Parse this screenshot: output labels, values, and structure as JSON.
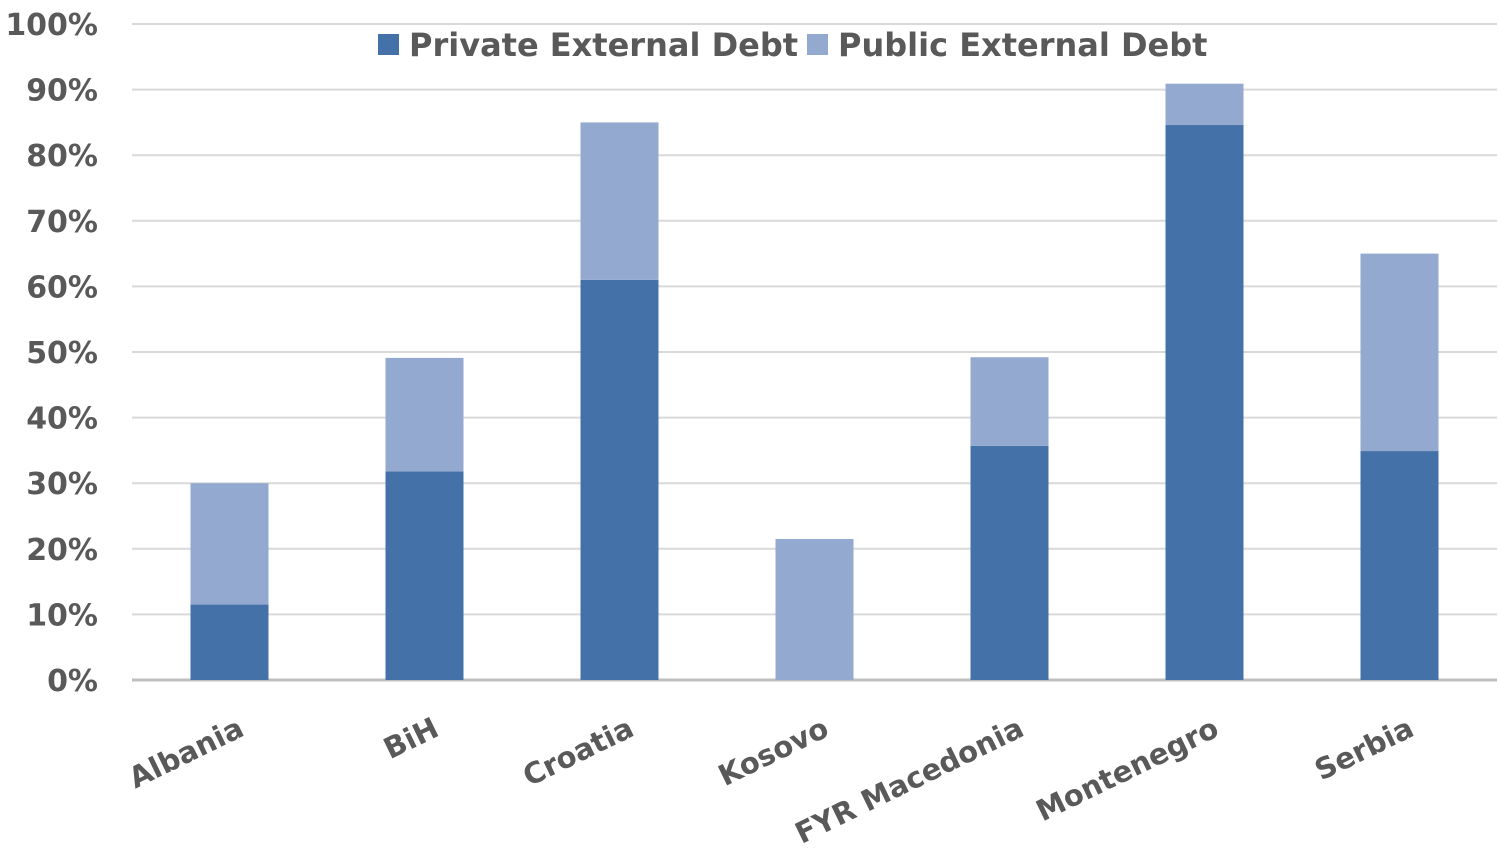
{
  "chart_data": {
    "type": "bar",
    "stacked": true,
    "title": "",
    "xlabel": "",
    "ylabel": "",
    "categories": [
      "Albania",
      "BiH",
      "Croatia",
      "Kosovo",
      "FYR Macedonia",
      "Montenegro",
      "Serbia"
    ],
    "series": [
      {
        "name": "Private External Debt",
        "color": "#4472a8",
        "values": [
          11.5,
          31.8,
          61.0,
          0,
          35.7,
          84.6,
          34.9
        ]
      },
      {
        "name": "Public External Debt",
        "color": "#94a9d0",
        "values": [
          18.5,
          17.3,
          24.0,
          21.5,
          13.5,
          6.3,
          30.1
        ]
      }
    ],
    "ylim": [
      0,
      100
    ],
    "yticks": [
      "0%",
      "10%",
      "20%",
      "30%",
      "40%",
      "50%",
      "60%",
      "70%",
      "80%",
      "90%",
      "100%"
    ],
    "grid": true,
    "legend_position": "top-center",
    "colors": {
      "grid": "#d9d9d9",
      "axis": "#bfbfbf",
      "text": "#595959"
    }
  }
}
